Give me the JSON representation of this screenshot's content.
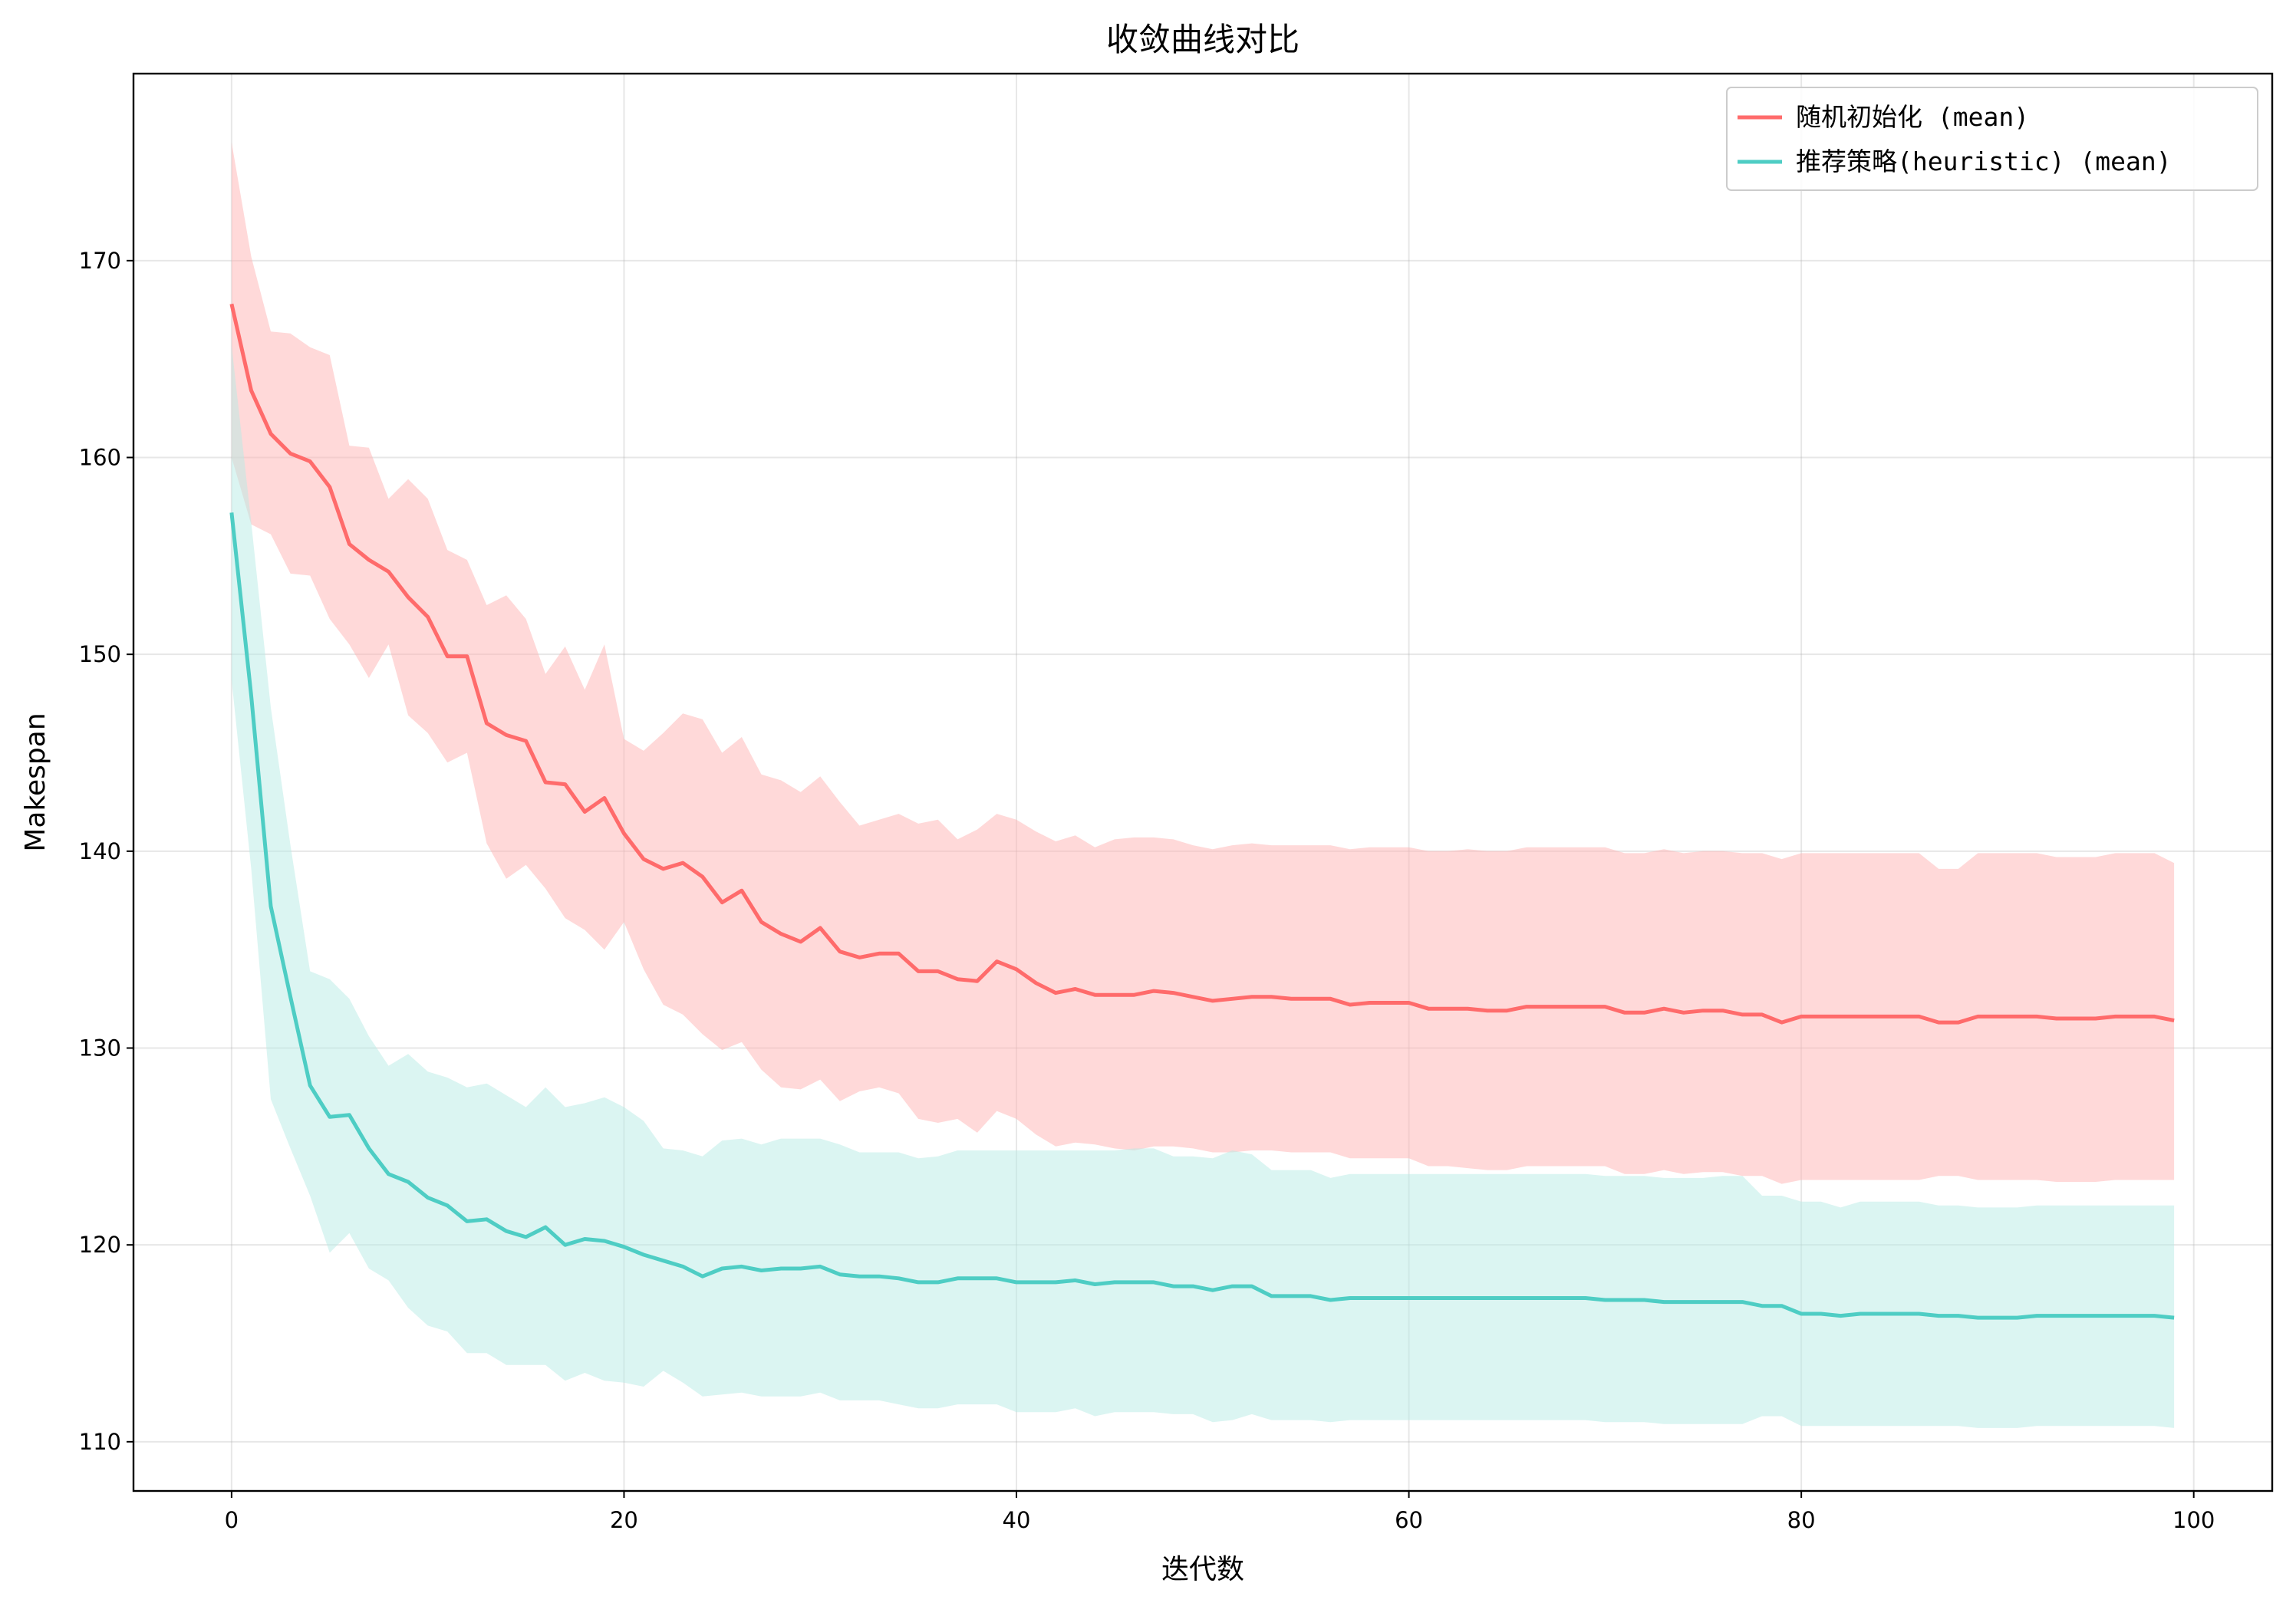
{
  "chart_data": {
    "type": "line",
    "title": "收敛曲线对比",
    "xlabel": "迭代数",
    "ylabel": "Makespan",
    "xlim": [
      -5,
      104
    ],
    "ylim": [
      107.5,
      179.5
    ],
    "xticks": [
      0,
      20,
      40,
      60,
      80,
      100
    ],
    "yticks": [
      110,
      120,
      130,
      140,
      150,
      160,
      170
    ],
    "grid": true,
    "legend_position": "top-right",
    "series": [
      {
        "name": "随机初始化 (mean)",
        "color": "#ff6b6b",
        "band_color": "#ffb3b3",
        "x_step": 1,
        "mean": [
          167.8,
          163.4,
          161.2,
          160.2,
          159.8,
          158.5,
          155.6,
          154.8,
          154.2,
          152.9,
          151.9,
          149.9,
          149.9,
          146.5,
          145.9,
          145.6,
          143.5,
          143.4,
          142.0,
          142.7,
          140.9,
          139.6,
          139.1,
          139.4,
          138.7,
          137.4,
          138.0,
          136.4,
          135.8,
          135.4,
          136.1,
          134.9,
          134.6,
          134.8,
          134.8,
          133.9,
          133.9,
          133.5,
          133.4,
          134.4,
          134.0,
          133.3,
          132.8,
          133.0,
          132.7,
          132.7,
          132.7,
          132.9,
          132.8,
          132.6,
          132.4,
          132.5,
          132.6,
          132.6,
          132.5,
          132.5,
          132.5,
          132.2,
          132.3,
          132.3,
          132.3,
          132.0,
          132.0,
          132.0,
          131.9,
          131.9,
          132.1,
          132.1,
          132.1,
          132.1,
          132.1,
          131.8,
          131.8,
          132.0,
          131.8,
          131.9,
          131.9,
          131.7,
          131.7,
          131.3,
          131.6,
          131.6,
          131.6,
          131.6,
          131.6,
          131.6,
          131.6,
          131.3,
          131.3,
          131.6,
          131.6,
          131.6,
          131.6,
          131.5,
          131.5,
          131.5,
          131.6,
          131.6,
          131.6,
          131.4
        ],
        "upper": [
          176.0,
          170.2,
          166.4,
          166.3,
          165.6,
          165.2,
          160.6,
          160.5,
          157.9,
          158.9,
          157.9,
          155.3,
          154.8,
          152.5,
          153.0,
          151.8,
          149.0,
          150.4,
          148.2,
          150.5,
          145.7,
          145.1,
          146.0,
          147.0,
          146.7,
          145.0,
          145.8,
          143.9,
          143.6,
          143.0,
          143.8,
          142.5,
          141.3,
          141.6,
          141.9,
          141.4,
          141.6,
          140.6,
          141.1,
          141.9,
          141.6,
          141.0,
          140.5,
          140.8,
          140.2,
          140.6,
          140.7,
          140.7,
          140.6,
          140.3,
          140.1,
          140.3,
          140.4,
          140.3,
          140.3,
          140.3,
          140.3,
          140.1,
          140.2,
          140.2,
          140.2,
          140.0,
          140.0,
          140.1,
          140.0,
          140.0,
          140.2,
          140.2,
          140.2,
          140.2,
          140.2,
          139.9,
          139.9,
          140.1,
          139.9,
          140.0,
          140.0,
          139.9,
          139.9,
          139.6,
          139.9,
          139.9,
          139.9,
          139.9,
          139.9,
          139.9,
          139.9,
          139.1,
          139.1,
          139.9,
          139.9,
          139.9,
          139.9,
          139.7,
          139.7,
          139.7,
          139.9,
          139.9,
          139.9,
          139.4
        ],
        "lower": [
          160.0,
          156.6,
          156.1,
          154.1,
          154.0,
          151.8,
          150.5,
          148.8,
          150.5,
          146.9,
          146.0,
          144.5,
          145.0,
          140.4,
          138.6,
          139.3,
          138.1,
          136.6,
          136.0,
          135.0,
          136.4,
          134.0,
          132.2,
          131.7,
          130.7,
          129.9,
          130.3,
          128.9,
          128.0,
          127.9,
          128.4,
          127.3,
          127.8,
          128.0,
          127.7,
          126.4,
          126.2,
          126.4,
          125.7,
          126.8,
          126.4,
          125.6,
          125.0,
          125.2,
          125.1,
          124.9,
          124.8,
          125.0,
          125.0,
          124.9,
          124.7,
          124.7,
          124.8,
          124.8,
          124.7,
          124.7,
          124.7,
          124.4,
          124.4,
          124.4,
          124.4,
          124.0,
          124.0,
          123.9,
          123.8,
          123.8,
          124.0,
          124.0,
          124.0,
          124.0,
          124.0,
          123.6,
          123.6,
          123.8,
          123.6,
          123.7,
          123.7,
          123.5,
          123.5,
          123.1,
          123.3,
          123.3,
          123.3,
          123.3,
          123.3,
          123.3,
          123.3,
          123.5,
          123.5,
          123.3,
          123.3,
          123.3,
          123.3,
          123.2,
          123.2,
          123.2,
          123.3,
          123.3,
          123.3,
          123.3
        ]
      },
      {
        "name": "推荐策略(heuristic) (mean)",
        "color": "#4ecdc4",
        "band_color": "#b7ebe6",
        "x_step": 1,
        "mean": [
          157.2,
          147.9,
          137.2,
          132.6,
          128.1,
          126.5,
          126.6,
          124.9,
          123.6,
          123.2,
          122.4,
          122.0,
          121.2,
          121.3,
          120.7,
          120.4,
          120.9,
          120.0,
          120.3,
          120.2,
          119.9,
          119.5,
          119.2,
          118.9,
          118.4,
          118.8,
          118.9,
          118.7,
          118.8,
          118.8,
          118.9,
          118.5,
          118.4,
          118.4,
          118.3,
          118.1,
          118.1,
          118.3,
          118.3,
          118.3,
          118.1,
          118.1,
          118.1,
          118.2,
          118.0,
          118.1,
          118.1,
          118.1,
          117.9,
          117.9,
          117.7,
          117.9,
          117.9,
          117.4,
          117.4,
          117.4,
          117.2,
          117.3,
          117.3,
          117.3,
          117.3,
          117.3,
          117.3,
          117.3,
          117.3,
          117.3,
          117.3,
          117.3,
          117.3,
          117.3,
          117.2,
          117.2,
          117.2,
          117.1,
          117.1,
          117.1,
          117.1,
          117.1,
          116.9,
          116.9,
          116.5,
          116.5,
          116.4,
          116.5,
          116.5,
          116.5,
          116.5,
          116.4,
          116.4,
          116.3,
          116.3,
          116.3,
          116.4,
          116.4,
          116.4,
          116.4,
          116.4,
          116.4,
          116.4,
          116.3
        ],
        "upper": [
          165.7,
          156.7,
          147.3,
          140.3,
          133.9,
          133.5,
          132.5,
          130.6,
          129.1,
          129.7,
          128.8,
          128.5,
          128.0,
          128.2,
          127.6,
          127.0,
          128.0,
          127.0,
          127.2,
          127.5,
          127.0,
          126.3,
          124.9,
          124.8,
          124.5,
          125.3,
          125.4,
          125.1,
          125.4,
          125.4,
          125.4,
          125.1,
          124.7,
          124.7,
          124.7,
          124.4,
          124.5,
          124.8,
          124.8,
          124.8,
          124.8,
          124.8,
          124.8,
          124.8,
          124.8,
          124.8,
          124.9,
          124.9,
          124.5,
          124.5,
          124.4,
          124.8,
          124.6,
          123.8,
          123.8,
          123.8,
          123.4,
          123.6,
          123.6,
          123.6,
          123.6,
          123.6,
          123.6,
          123.6,
          123.6,
          123.6,
          123.6,
          123.6,
          123.6,
          123.6,
          123.5,
          123.5,
          123.5,
          123.4,
          123.4,
          123.4,
          123.5,
          123.5,
          122.5,
          122.5,
          122.2,
          122.2,
          121.9,
          122.2,
          122.2,
          122.2,
          122.2,
          122.0,
          122.0,
          121.9,
          121.9,
          121.9,
          122.0,
          122.0,
          122.0,
          122.0,
          122.0,
          122.0,
          122.0,
          122.0
        ],
        "lower": [
          148.7,
          139.1,
          127.4,
          124.9,
          122.5,
          119.6,
          120.6,
          118.8,
          118.2,
          116.8,
          115.9,
          115.6,
          114.5,
          114.5,
          113.9,
          113.9,
          113.9,
          113.1,
          113.5,
          113.1,
          113.0,
          112.8,
          113.6,
          113.0,
          112.3,
          112.4,
          112.5,
          112.3,
          112.3,
          112.3,
          112.5,
          112.1,
          112.1,
          112.1,
          111.9,
          111.7,
          111.7,
          111.9,
          111.9,
          111.9,
          111.5,
          111.5,
          111.5,
          111.7,
          111.3,
          111.5,
          111.5,
          111.5,
          111.4,
          111.4,
          111.0,
          111.1,
          111.4,
          111.1,
          111.1,
          111.1,
          111.0,
          111.1,
          111.1,
          111.1,
          111.1,
          111.1,
          111.1,
          111.1,
          111.1,
          111.1,
          111.1,
          111.1,
          111.1,
          111.1,
          111.0,
          111.0,
          111.0,
          110.9,
          110.9,
          110.9,
          110.9,
          110.9,
          111.3,
          111.3,
          110.8,
          110.8,
          110.8,
          110.8,
          110.8,
          110.8,
          110.8,
          110.8,
          110.8,
          110.7,
          110.7,
          110.7,
          110.8,
          110.8,
          110.8,
          110.8,
          110.8,
          110.8,
          110.8,
          110.7
        ]
      }
    ]
  }
}
